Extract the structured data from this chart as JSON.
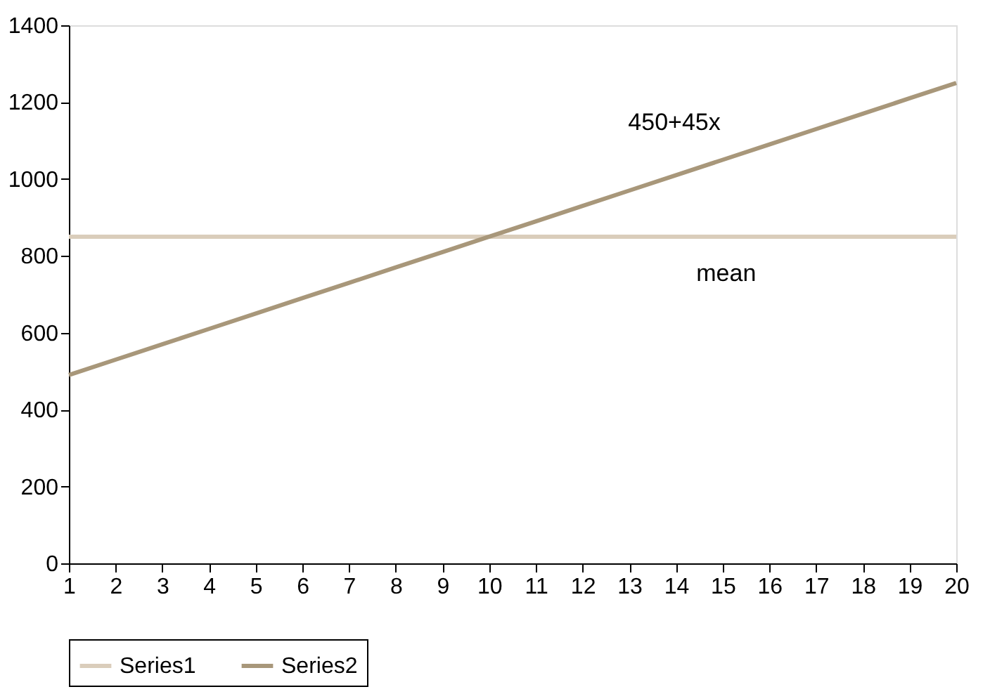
{
  "chart_data": {
    "type": "line",
    "x": [
      1,
      2,
      3,
      4,
      5,
      6,
      7,
      8,
      9,
      10,
      11,
      12,
      13,
      14,
      15,
      16,
      17,
      18,
      19,
      20
    ],
    "series": [
      {
        "name": "Series1",
        "color": "#dacdbb",
        "values": [
          850,
          850,
          850,
          850,
          850,
          850,
          850,
          850,
          850,
          850,
          850,
          850,
          850,
          850,
          850,
          850,
          850,
          850,
          850,
          850
        ]
      },
      {
        "name": "Series2",
        "color": "#a8977a",
        "values": [
          490,
          530,
          570,
          610,
          650,
          690,
          730,
          770,
          810,
          850,
          890,
          930,
          970,
          1010,
          1050,
          1090,
          1130,
          1170,
          1210,
          1250
        ]
      }
    ],
    "xlim": [
      1,
      20
    ],
    "xticks": [
      1,
      2,
      3,
      4,
      5,
      6,
      7,
      8,
      9,
      10,
      11,
      12,
      13,
      14,
      15,
      16,
      17,
      18,
      19,
      20
    ],
    "ylim": [
      0,
      1400
    ],
    "yticks": [
      0,
      200,
      400,
      600,
      800,
      1000,
      1200,
      1400
    ],
    "annotations": [
      "450+45x",
      "mean"
    ],
    "grid": false,
    "legend": "bottom",
    "marker": "none",
    "line_style": "solid"
  }
}
